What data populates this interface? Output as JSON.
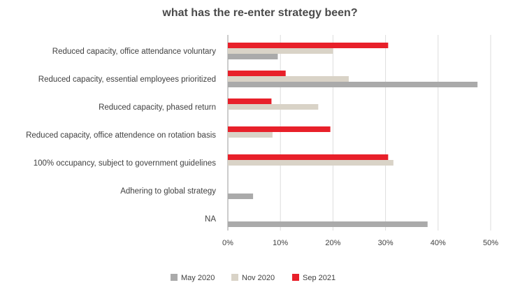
{
  "chart_data": {
    "type": "bar",
    "orientation": "horizontal",
    "title": "what has the re-enter strategy been?",
    "xlabel": "",
    "ylabel": "",
    "xlim": [
      0,
      50
    ],
    "ticks": [
      "0%",
      "10%",
      "20%",
      "30%",
      "40%",
      "50%"
    ],
    "tick_values": [
      0,
      10,
      20,
      30,
      40,
      50
    ],
    "grid": true,
    "legend_position": "bottom",
    "categories": [
      "Reduced capacity, office attendance voluntary",
      "Reduced capacity, essential employees prioritized",
      "Reduced capacity, phased return",
      "Reduced capacity, office attendence on rotation basis",
      "100% occupancy, subject to government guidelines",
      "Adhering to global strategy",
      "NA"
    ],
    "series": [
      {
        "name": "Sep 2021",
        "color": "#e8202a",
        "values": [
          30.5,
          11,
          8.3,
          19.5,
          30.5,
          0,
          0
        ]
      },
      {
        "name": "Nov 2020",
        "color": "#d9d3c7",
        "values": [
          20,
          23,
          17.2,
          8.5,
          31.5,
          0,
          0
        ]
      },
      {
        "name": "May 2020",
        "color": "#aaaaaa",
        "values": [
          9.5,
          47.5,
          0,
          0,
          0,
          4.8,
          38
        ]
      }
    ],
    "legend": [
      "May 2020",
      "Nov 2020",
      "Sep 2021"
    ]
  }
}
